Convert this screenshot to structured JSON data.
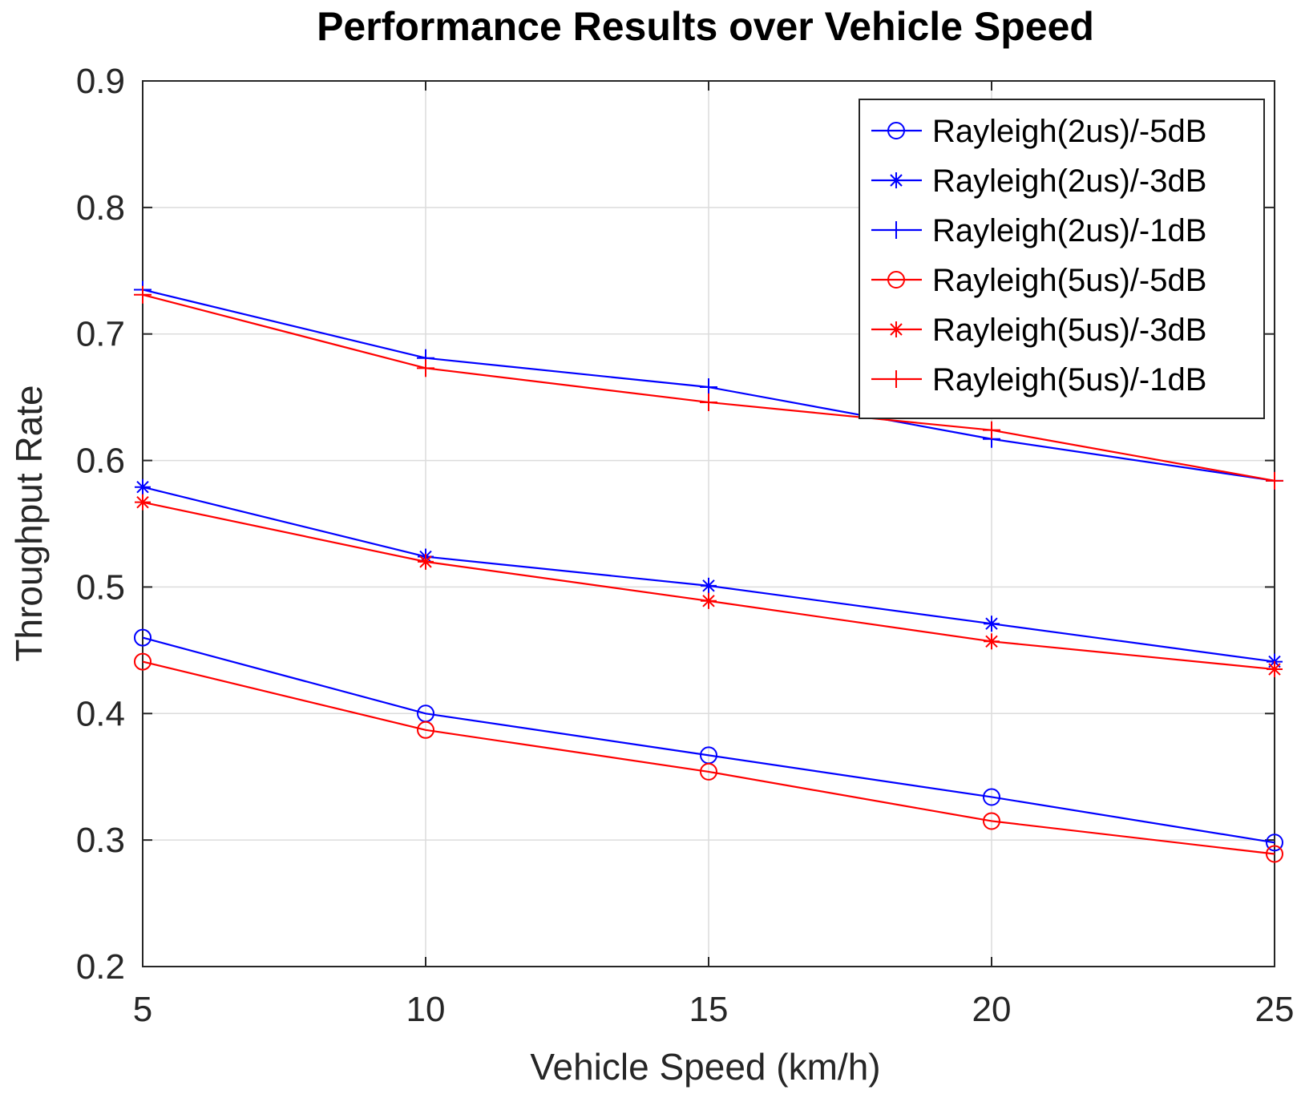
{
  "chart_data": {
    "type": "line",
    "title": "Performance Results over Vehicle Speed",
    "xlabel": "Vehicle Speed (km/h)",
    "ylabel": "Throughput Rate",
    "x": [
      5,
      10,
      15,
      20,
      25
    ],
    "xlim": [
      5,
      25
    ],
    "ylim": [
      0.2,
      0.9
    ],
    "xticks": [
      5,
      10,
      15,
      20,
      25
    ],
    "yticks": [
      0.2,
      0.3,
      0.4,
      0.5,
      0.6,
      0.7,
      0.8,
      0.9
    ],
    "xtick_labels": [
      "5",
      "10",
      "15",
      "20",
      "25"
    ],
    "ytick_labels": [
      "0.2",
      "0.3",
      "0.4",
      "0.5",
      "0.6",
      "0.7",
      "0.8",
      "0.9"
    ],
    "grid": true,
    "legend_position": "top-right",
    "series": [
      {
        "name": "Rayleigh(2us)/-5dB",
        "color": "#0000ff",
        "marker": "circle",
        "values": [
          0.46,
          0.4,
          0.367,
          0.334,
          0.298
        ]
      },
      {
        "name": "Rayleigh(2us)/-3dB",
        "color": "#0000ff",
        "marker": "asterisk",
        "values": [
          0.579,
          0.524,
          0.501,
          0.471,
          0.441
        ]
      },
      {
        "name": "Rayleigh(2us)/-1dB",
        "color": "#0000ff",
        "marker": "plus",
        "values": [
          0.735,
          0.681,
          0.658,
          0.617,
          0.584
        ]
      },
      {
        "name": "Rayleigh(5us)/-5dB",
        "color": "#ff0000",
        "marker": "circle",
        "values": [
          0.441,
          0.387,
          0.354,
          0.315,
          0.289
        ]
      },
      {
        "name": "Rayleigh(5us)/-3dB",
        "color": "#ff0000",
        "marker": "asterisk",
        "values": [
          0.567,
          0.52,
          0.489,
          0.457,
          0.435
        ]
      },
      {
        "name": "Rayleigh(5us)/-1dB",
        "color": "#ff0000",
        "marker": "plus",
        "values": [
          0.731,
          0.673,
          0.646,
          0.624,
          0.584
        ]
      }
    ]
  }
}
